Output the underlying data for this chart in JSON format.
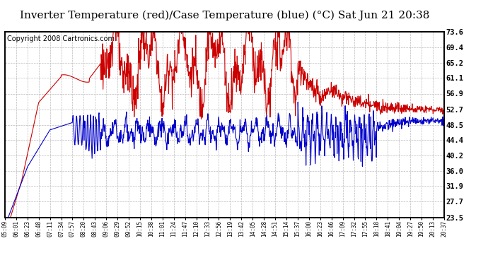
{
  "title": "Inverter Temperature (red)/Case Temperature (blue) (°C) Sat Jun 21 20:38",
  "copyright": "Copyright 2008 Cartronics.com",
  "ylabel_right_ticks": [
    73.6,
    69.4,
    65.2,
    61.1,
    56.9,
    52.7,
    48.5,
    44.4,
    40.2,
    36.0,
    31.9,
    27.7,
    23.5
  ],
  "y_min": 23.5,
  "y_max": 73.6,
  "x_labels": [
    "05:09",
    "06:01",
    "06:23",
    "06:48",
    "07:11",
    "07:34",
    "07:57",
    "08:20",
    "08:43",
    "09:06",
    "09:29",
    "09:52",
    "10:15",
    "10:38",
    "11:01",
    "11:24",
    "11:47",
    "12:10",
    "12:33",
    "12:56",
    "13:19",
    "13:42",
    "14:05",
    "14:28",
    "14:51",
    "15:14",
    "15:37",
    "16:00",
    "16:23",
    "16:46",
    "17:09",
    "17:32",
    "17:55",
    "18:18",
    "18:41",
    "19:04",
    "19:27",
    "19:50",
    "20:13",
    "20:37"
  ],
  "background_color": "#ffffff",
  "grid_color": "#bbbbbb",
  "red_color": "#cc0000",
  "blue_color": "#0000cc",
  "title_fontsize": 11,
  "copyright_fontsize": 7
}
